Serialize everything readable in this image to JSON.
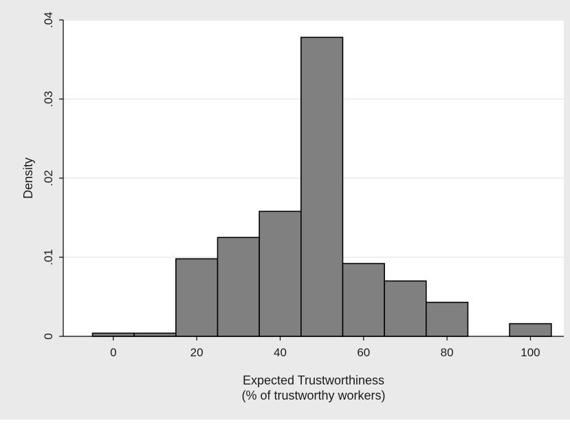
{
  "chart_data": {
    "type": "bar",
    "subtype": "histogram",
    "xlabel_line1": "Expected Trustworthiness",
    "xlabel_line2": "(% of trustworthy workers)",
    "ylabel": "Density",
    "xlim": [
      -12,
      108
    ],
    "ylim": [
      0,
      0.04
    ],
    "x_ticks": [
      0,
      20,
      40,
      60,
      80,
      100
    ],
    "x_tick_labels": [
      "0",
      "20",
      "40",
      "60",
      "80",
      "100"
    ],
    "y_ticks": [
      0,
      0.01,
      0.02,
      0.03,
      0.04
    ],
    "y_tick_labels": [
      "0",
      ".01",
      ".02",
      ".03",
      ".04"
    ],
    "grid": true,
    "bins": [
      {
        "x0": -5,
        "x1": 5,
        "density": 0.0004
      },
      {
        "x0": 5,
        "x1": 15,
        "density": 0.0004
      },
      {
        "x0": 15,
        "x1": 25,
        "density": 0.0098
      },
      {
        "x0": 25,
        "x1": 35,
        "density": 0.0125
      },
      {
        "x0": 35,
        "x1": 45,
        "density": 0.0158
      },
      {
        "x0": 45,
        "x1": 55,
        "density": 0.0378
      },
      {
        "x0": 55,
        "x1": 65,
        "density": 0.0092
      },
      {
        "x0": 65,
        "x1": 75,
        "density": 0.007
      },
      {
        "x0": 75,
        "x1": 85,
        "density": 0.0043
      },
      {
        "x0": 95,
        "x1": 105,
        "density": 0.0016
      }
    ],
    "colors": {
      "bar_fill": "#808080",
      "bar_stroke": "#000000",
      "outer_background": "#eaeaea",
      "plot_background": "#ffffff",
      "grid": "#e8e8e8",
      "axis": "#000000"
    }
  }
}
